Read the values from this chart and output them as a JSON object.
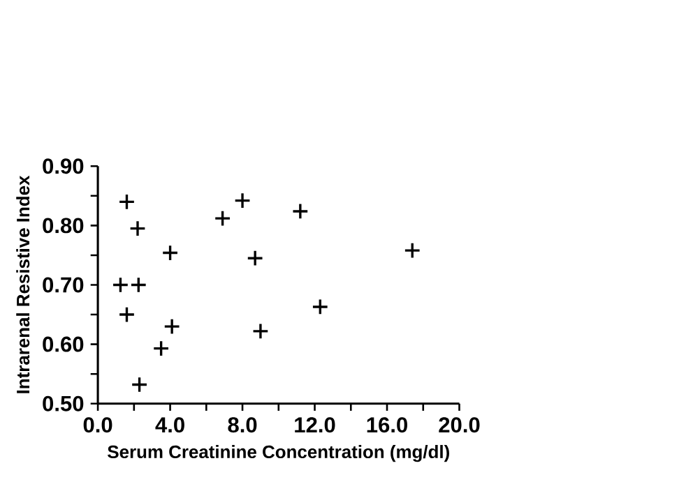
{
  "chart_data": {
    "type": "scatter",
    "xlabel": "Serum Creatinine Concentration (mg/dl)",
    "ylabel": "Intrarenal  Resistive  Index",
    "marker": "cross",
    "color": "#000000",
    "x": [
      1.6,
      2.2,
      4.0,
      1.25,
      2.25,
      1.6,
      4.1,
      3.5,
      2.3,
      6.9,
      8.0,
      8.7,
      9.0,
      11.2,
      17.4,
      12.3
    ],
    "values": [
      0.84,
      0.795,
      0.754,
      0.7,
      0.7,
      0.65,
      0.63,
      0.593,
      0.532,
      0.812,
      0.842,
      0.745,
      0.622,
      0.824,
      0.758,
      0.663
    ],
    "xlim": [
      0,
      20
    ],
    "xticks": [
      {
        "value": 0,
        "label": "0.0"
      },
      {
        "value": 2,
        "label": null
      },
      {
        "value": 4,
        "label": "4.0"
      },
      {
        "value": 6,
        "label": null
      },
      {
        "value": 8,
        "label": "8.0"
      },
      {
        "value": 10,
        "label": null
      },
      {
        "value": 12,
        "label": "12.0"
      },
      {
        "value": 14,
        "label": null
      },
      {
        "value": 16,
        "label": "16.0"
      },
      {
        "value": 18,
        "label": null
      },
      {
        "value": 20,
        "label": "20.0"
      }
    ],
    "ylim": [
      0.5,
      0.9
    ],
    "yticks": [
      {
        "value": 0.5,
        "label": "0.50"
      },
      {
        "value": 0.55,
        "label": null
      },
      {
        "value": 0.6,
        "label": "0.60"
      },
      {
        "value": 0.65,
        "label": null
      },
      {
        "value": 0.7,
        "label": "0.70"
      },
      {
        "value": 0.75,
        "label": null
      },
      {
        "value": 0.8,
        "label": "0.80"
      },
      {
        "value": 0.85,
        "label": null
      },
      {
        "value": 0.9,
        "label": "0.90"
      }
    ]
  }
}
